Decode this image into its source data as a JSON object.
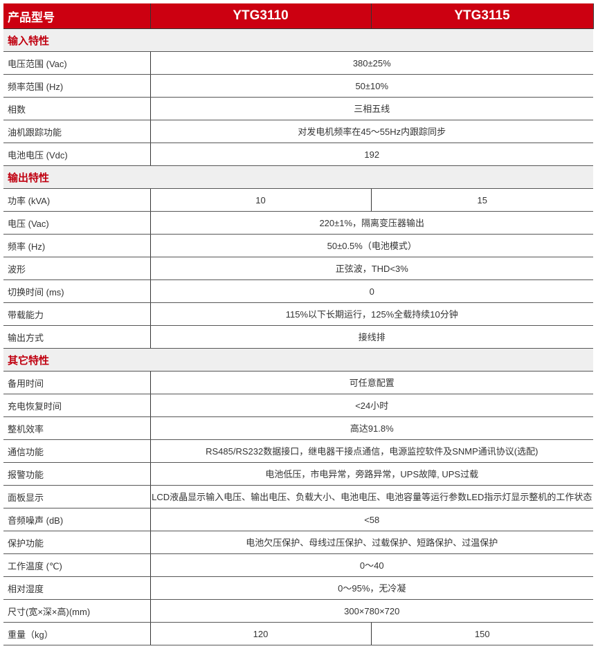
{
  "header": {
    "label": "产品型号",
    "models": [
      "YTG3110",
      "YTG3115"
    ]
  },
  "colors": {
    "header_bg": "#cc0011",
    "section_text": "#c00010",
    "section_bg": "#efefef"
  },
  "sections": [
    {
      "title": "输入特性",
      "rows": [
        {
          "label": "电压范围 (Vac)",
          "values": [
            "380±25%"
          ]
        },
        {
          "label": "频率范围 (Hz)",
          "values": [
            "50±10%"
          ]
        },
        {
          "label": "相数",
          "values": [
            "三相五线"
          ]
        },
        {
          "label": "油机跟踪功能",
          "values": [
            "对发电机频率在45～55Hz内跟踪同步"
          ]
        },
        {
          "label": "电池电压 (Vdc)",
          "values": [
            "192"
          ]
        }
      ]
    },
    {
      "title": "输出特性",
      "rows": [
        {
          "label": "功率 (kVA)",
          "values": [
            "10",
            "15"
          ]
        },
        {
          "label": "电压 (Vac)",
          "values": [
            "220±1%，隔离变压器输出"
          ]
        },
        {
          "label": "频率 (Hz)",
          "values": [
            "50±0.5%（电池模式）"
          ]
        },
        {
          "label": "波形",
          "values": [
            "正弦波，THD<3%"
          ]
        },
        {
          "label": "切换时间 (ms)",
          "values": [
            "0"
          ]
        },
        {
          "label": "带载能力",
          "values": [
            "115%以下长期运行，125%全载持续10分钟"
          ]
        },
        {
          "label": "输出方式",
          "values": [
            "接线排"
          ]
        }
      ]
    },
    {
      "title": "其它特性",
      "rows": [
        {
          "label": "备用时间",
          "values": [
            "可任意配置"
          ]
        },
        {
          "label": "充电恢复时间",
          "values": [
            "<24小时"
          ]
        },
        {
          "label": "整机效率",
          "values": [
            "高达91.8%"
          ]
        },
        {
          "label": "通信功能",
          "values": [
            "RS485/RS232数据接口，继电器干接点通信，电源监控软件及SNMP通讯协议(选配)"
          ]
        },
        {
          "label": "报警功能",
          "values": [
            "电池低压，市电异常，旁路异常，UPS故障, UPS过载"
          ]
        },
        {
          "label": "面板显示",
          "values": [
            "LCD液晶显示输入电压、输出电压、负载大小、电池电压、电池容量等运行参数LED指示灯显示整机的工作状态"
          ]
        },
        {
          "label": "音频噪声 (dB)",
          "values": [
            "<58"
          ]
        },
        {
          "label": "保护功能",
          "values": [
            "电池欠压保护、母线过压保护、过载保护、短路保护、过温保护"
          ]
        },
        {
          "label": "工作温度 (℃)",
          "values": [
            "0～40"
          ]
        },
        {
          "label": "相对湿度",
          "values": [
            "0～95%，无冷凝"
          ]
        },
        {
          "label": "尺寸(宽×深×高)(mm)",
          "values": [
            "300×780×720"
          ]
        },
        {
          "label": "重量（kg）",
          "values": [
            "120",
            "150"
          ]
        }
      ]
    }
  ]
}
